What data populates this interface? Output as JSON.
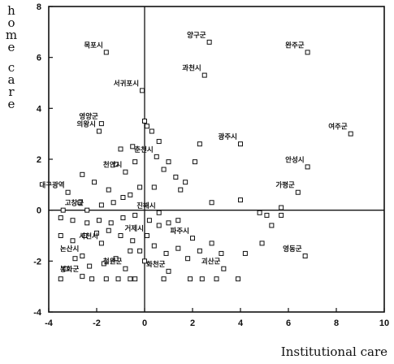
{
  "chart_data": {
    "type": "scatter",
    "xlabel": "Institutional care",
    "ylabel_lines": [
      "home",
      "care"
    ],
    "xlim": [
      -4,
      10
    ],
    "ylim": [
      -4,
      8
    ],
    "xticks": [
      -4,
      -2,
      0,
      2,
      4,
      6,
      8,
      10
    ],
    "yticks": [
      -4,
      -2,
      0,
      2,
      4,
      6,
      8
    ],
    "reference_lines": {
      "x": 0,
      "y": 0
    },
    "labeled_points": [
      {
        "label": "양구군",
        "x": 2.7,
        "y": 6.6
      },
      {
        "label": "완주군",
        "x": 6.8,
        "y": 6.2
      },
      {
        "label": "목포시",
        "x": -1.6,
        "y": 6.2
      },
      {
        "label": "과천시",
        "x": 2.5,
        "y": 5.3
      },
      {
        "label": "서귀포시",
        "x": -0.1,
        "y": 4.7
      },
      {
        "label": "영양군",
        "x": -1.8,
        "y": 3.4
      },
      {
        "label": "여주군",
        "x": 8.6,
        "y": 3.0
      },
      {
        "label": "의왕시",
        "x": -1.9,
        "y": 3.1
      },
      {
        "label": "광주시",
        "x": 4.0,
        "y": 2.6
      },
      {
        "label": "춘천시",
        "x": 0.5,
        "y": 2.1
      },
      {
        "label": "안성시",
        "x": 6.8,
        "y": 1.7
      },
      {
        "label": "천안시",
        "x": -0.8,
        "y": 1.5
      },
      {
        "label": "가평군",
        "x": 6.4,
        "y": 0.7
      },
      {
        "label": "대구광역",
        "x": -3.2,
        "y": 0.7
      },
      {
        "label": "고창군",
        "x": -2.4,
        "y": 0.0
      },
      {
        "label": "진해시",
        "x": 0.6,
        "y": -0.1
      },
      {
        "label": "파주시",
        "x": 2.0,
        "y": -1.1
      },
      {
        "label": "거제시",
        "x": 0.1,
        "y": -1.0
      },
      {
        "label": "영동군",
        "x": 6.7,
        "y": -1.8
      },
      {
        "label": "사천시",
        "x": -1.8,
        "y": -1.3
      },
      {
        "label": "논산시",
        "x": -2.6,
        "y": -1.8
      },
      {
        "label": "철원군",
        "x": -0.8,
        "y": -2.3
      },
      {
        "label": "화천군",
        "x": 1.0,
        "y": -2.4
      },
      {
        "label": "괴산군",
        "x": 3.3,
        "y": -2.3
      },
      {
        "label": "봉화군",
        "x": -2.6,
        "y": -2.6
      }
    ],
    "unlabeled_points": [
      {
        "x": -2.6,
        "y": 1.4
      },
      {
        "x": -2.1,
        "y": 1.1
      },
      {
        "x": -1.5,
        "y": 0.8
      },
      {
        "x": -1.2,
        "y": 1.8
      },
      {
        "x": -1.0,
        "y": 2.4
      },
      {
        "x": -0.5,
        "y": 2.5
      },
      {
        "x": -0.4,
        "y": 1.9
      },
      {
        "x": 0.0,
        "y": 3.5
      },
      {
        "x": 0.1,
        "y": 3.3
      },
      {
        "x": 0.3,
        "y": 3.1
      },
      {
        "x": 0.6,
        "y": 2.7
      },
      {
        "x": 0.8,
        "y": 1.6
      },
      {
        "x": 1.0,
        "y": 1.9
      },
      {
        "x": 1.3,
        "y": 1.3
      },
      {
        "x": 1.7,
        "y": 1.1
      },
      {
        "x": 2.1,
        "y": 1.9
      },
      {
        "x": 2.3,
        "y": 2.6
      },
      {
        "x": 1.5,
        "y": 0.8
      },
      {
        "x": 0.4,
        "y": 0.9
      },
      {
        "x": -0.2,
        "y": 0.9
      },
      {
        "x": -0.6,
        "y": 0.6
      },
      {
        "x": -0.9,
        "y": 0.5
      },
      {
        "x": -1.3,
        "y": 0.3
      },
      {
        "x": -1.8,
        "y": 0.2
      },
      {
        "x": -2.7,
        "y": 0.3
      },
      {
        "x": -3.4,
        "y": 0.0
      },
      {
        "x": -3.5,
        "y": -0.3
      },
      {
        "x": -3.0,
        "y": -0.4
      },
      {
        "x": -2.4,
        "y": -0.5
      },
      {
        "x": -1.9,
        "y": -0.4
      },
      {
        "x": -1.4,
        "y": -0.5
      },
      {
        "x": -0.9,
        "y": -0.3
      },
      {
        "x": -0.4,
        "y": -0.2
      },
      {
        "x": 0.2,
        "y": -0.4
      },
      {
        "x": 0.6,
        "y": -0.6
      },
      {
        "x": 1.0,
        "y": -0.5
      },
      {
        "x": 1.4,
        "y": -0.4
      },
      {
        "x": -3.5,
        "y": -1.0
      },
      {
        "x": -3.0,
        "y": -1.2
      },
      {
        "x": -2.5,
        "y": -1.0
      },
      {
        "x": -2.0,
        "y": -0.9
      },
      {
        "x": -1.5,
        "y": -0.8
      },
      {
        "x": -1.0,
        "y": -1.0
      },
      {
        "x": -0.5,
        "y": -1.2
      },
      {
        "x": -0.2,
        "y": -1.6
      },
      {
        "x": 0.4,
        "y": -1.4
      },
      {
        "x": 0.9,
        "y": -1.7
      },
      {
        "x": 1.4,
        "y": -1.5
      },
      {
        "x": 1.8,
        "y": -1.9
      },
      {
        "x": 2.3,
        "y": -1.6
      },
      {
        "x": 2.8,
        "y": -1.3
      },
      {
        "x": 3.2,
        "y": -1.7
      },
      {
        "x": 4.2,
        "y": -1.7
      },
      {
        "x": 4.9,
        "y": -1.3
      },
      {
        "x": 5.3,
        "y": -0.6
      },
      {
        "x": 4.8,
        "y": -0.1
      },
      {
        "x": 5.1,
        "y": -0.2
      },
      {
        "x": 5.7,
        "y": -0.2
      },
      {
        "x": 5.7,
        "y": 0.1
      },
      {
        "x": 4.0,
        "y": 0.4
      },
      {
        "x": 2.8,
        "y": 0.3
      },
      {
        "x": -3.3,
        "y": -2.3
      },
      {
        "x": -2.9,
        "y": -1.9
      },
      {
        "x": -2.3,
        "y": -2.2
      },
      {
        "x": -1.7,
        "y": -2.1
      },
      {
        "x": -1.2,
        "y": -1.9
      },
      {
        "x": -0.6,
        "y": -1.6
      },
      {
        "x": 0.0,
        "y": -2.0
      },
      {
        "x": -2.2,
        "y": -2.7
      },
      {
        "x": -1.6,
        "y": -2.7
      },
      {
        "x": -1.1,
        "y": -2.7
      },
      {
        "x": -0.6,
        "y": -2.7
      },
      {
        "x": -0.4,
        "y": -2.7
      },
      {
        "x": 0.8,
        "y": -2.7
      },
      {
        "x": 1.9,
        "y": -2.7
      },
      {
        "x": 2.4,
        "y": -2.7
      },
      {
        "x": 3.0,
        "y": -2.7
      },
      {
        "x": 3.9,
        "y": -2.7
      },
      {
        "x": -3.5,
        "y": -2.7
      }
    ]
  }
}
